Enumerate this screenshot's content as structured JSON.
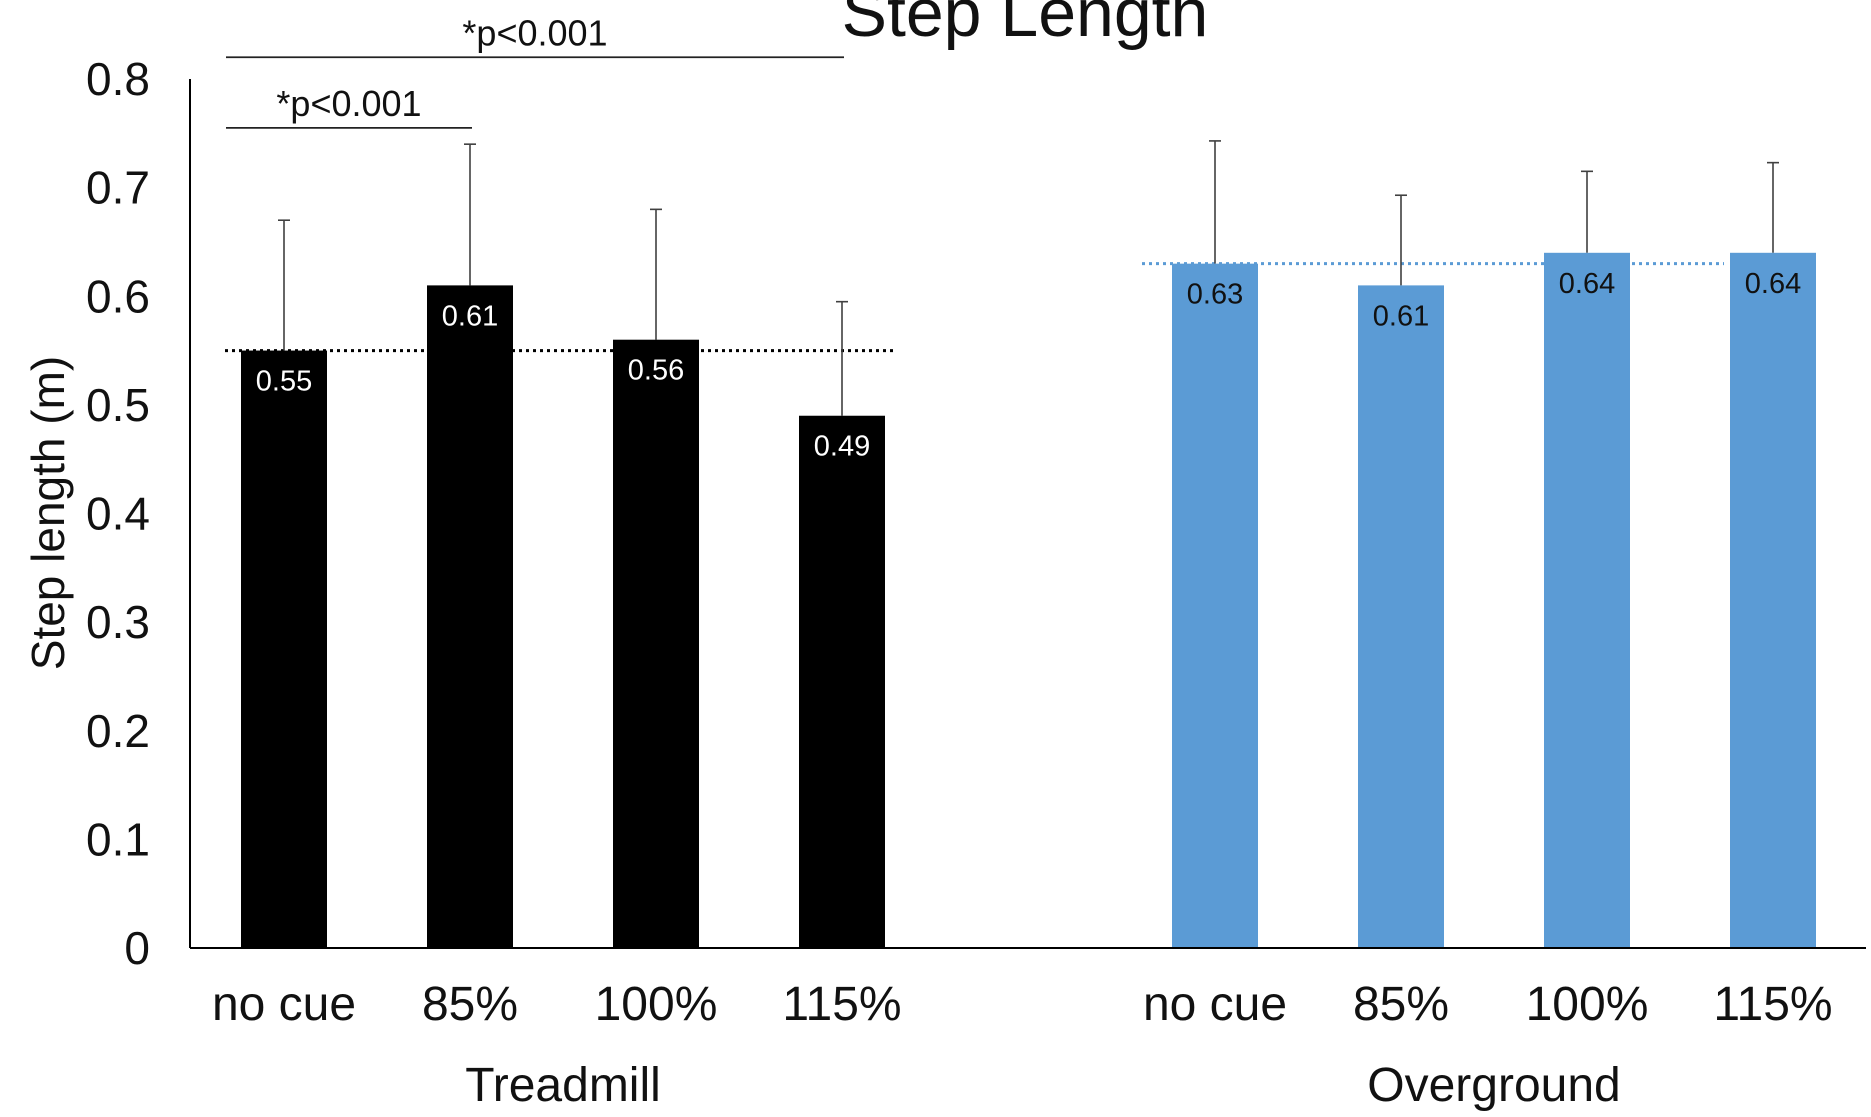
{
  "chart_data": {
    "type": "bar",
    "title": "Step Length",
    "ylabel": "Step length (m)",
    "ylim": [
      0,
      0.8
    ],
    "yticks": [
      "0",
      "0.1",
      "0.2",
      "0.3",
      "0.4",
      "0.5",
      "0.6",
      "0.7",
      "0.8"
    ],
    "grid": false,
    "groups": [
      {
        "name": "Treadmill",
        "color": "#000000",
        "label_color": "#ffffff",
        "baseline_color": "#000000",
        "baseline": 0.55,
        "categories": [
          "no cue",
          "85%",
          "100%",
          "115%"
        ],
        "values": [
          0.55,
          0.61,
          0.56,
          0.49
        ],
        "labels": [
          "0.55",
          "0.61",
          "0.56",
          "0.49"
        ],
        "errors": [
          0.12,
          0.13,
          0.12,
          0.105
        ]
      },
      {
        "name": "Overground",
        "color": "#5b9bd5",
        "label_color": "#111111",
        "baseline_color": "#5b9bd5",
        "baseline": 0.63,
        "categories": [
          "no cue",
          "85%",
          "100%",
          "115%"
        ],
        "values": [
          0.63,
          0.61,
          0.64,
          0.64
        ],
        "labels": [
          "0.63",
          "0.61",
          "0.64",
          "0.64"
        ],
        "errors": [
          0.113,
          0.083,
          0.075,
          0.083
        ]
      }
    ],
    "annotations": [
      {
        "text": "*p<0.001",
        "group": 0,
        "from": 0,
        "to": 3,
        "level": 0.82
      },
      {
        "text": "*p<0.001",
        "group": 0,
        "from": 0,
        "to": 1,
        "level": 0.755
      }
    ]
  }
}
